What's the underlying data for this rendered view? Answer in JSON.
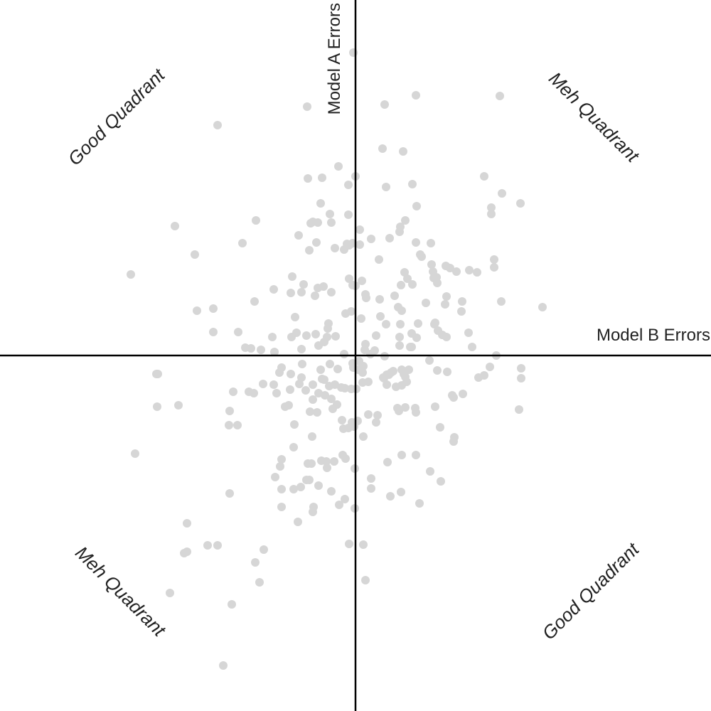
{
  "chart_data": {
    "type": "scatter",
    "title": "",
    "xlabel": "Model B Errors",
    "ylabel": "Model A Errors",
    "xlim": [
      -5,
      5
    ],
    "ylim": [
      -5,
      5
    ],
    "grid": false,
    "point_color": "#d6d6d6",
    "axis_color": "#000000",
    "quadrant_labels": {
      "top_left": "Good Quadrant",
      "top_right": "Meh Quadrant",
      "bottom_left": "Meh Quadrant",
      "bottom_right": "Good Quadrant"
    },
    "points": [
      [
        -0.03,
        4.26
      ],
      [
        -0.68,
        3.5
      ],
      [
        0.85,
        3.66
      ],
      [
        0.41,
        3.53
      ],
      [
        2.03,
        3.65
      ],
      [
        -1.94,
        3.24
      ],
      [
        0.38,
        2.91
      ],
      [
        0.67,
        2.87
      ],
      [
        -0.67,
        2.49
      ],
      [
        -0.47,
        2.5
      ],
      [
        -0.24,
        2.66
      ],
      [
        0.0,
        2.52
      ],
      [
        -0.1,
        2.4
      ],
      [
        1.81,
        2.52
      ],
      [
        2.06,
        2.28
      ],
      [
        0.43,
        2.37
      ],
      [
        0.8,
        2.41
      ],
      [
        -0.49,
        2.14
      ],
      [
        -0.36,
        1.99
      ],
      [
        -0.1,
        1.98
      ],
      [
        0.86,
        2.1
      ],
      [
        1.91,
        2.08
      ],
      [
        1.91,
        1.99
      ],
      [
        2.32,
        2.14
      ],
      [
        -0.34,
        1.87
      ],
      [
        -0.6,
        1.88
      ],
      [
        -0.63,
        1.86
      ],
      [
        0.7,
        1.9
      ],
      [
        -1.4,
        1.9
      ],
      [
        -2.54,
        1.82
      ],
      [
        -0.8,
        1.69
      ],
      [
        -0.53,
        1.87
      ],
      [
        0.06,
        1.77
      ],
      [
        0.63,
        1.81
      ],
      [
        0.62,
        1.74
      ],
      [
        0.48,
        1.65
      ],
      [
        -0.55,
        1.59
      ],
      [
        -0.12,
        1.57
      ],
      [
        0.06,
        1.56
      ],
      [
        -0.04,
        1.58
      ],
      [
        -0.09,
        1.55
      ],
      [
        -1.59,
        1.58
      ],
      [
        0.22,
        1.64
      ],
      [
        0.85,
        1.59
      ],
      [
        1.06,
        1.58
      ],
      [
        -2.26,
        1.42
      ],
      [
        -0.65,
        1.48
      ],
      [
        -0.29,
        1.51
      ],
      [
        -0.16,
        1.49
      ],
      [
        0.91,
        1.42
      ],
      [
        0.93,
        1.39
      ],
      [
        1.95,
        1.35
      ],
      [
        1.07,
        1.28
      ],
      [
        1.09,
        1.18
      ],
      [
        0.33,
        1.35
      ],
      [
        0.69,
        1.17
      ],
      [
        1.27,
        1.26
      ],
      [
        1.95,
        1.24
      ],
      [
        0.73,
        1.08
      ],
      [
        -3.16,
        1.14
      ],
      [
        -0.89,
        1.11
      ],
      [
        -0.73,
        1.0
      ],
      [
        -0.53,
        0.95
      ],
      [
        -0.45,
        0.97
      ],
      [
        -0.09,
        1.08
      ],
      [
        0.09,
        1.05
      ],
      [
        1.1,
        1.09
      ],
      [
        1.42,
        1.18
      ],
      [
        1.6,
        1.2
      ],
      [
        1.33,
        1.23
      ],
      [
        1.14,
        1.1
      ],
      [
        1.15,
        1.02
      ],
      [
        1.71,
        1.17
      ],
      [
        -0.04,
        0.99
      ],
      [
        0.0,
        0.98
      ],
      [
        -0.76,
        0.89
      ],
      [
        0.64,
        0.99
      ],
      [
        0.8,
        1.0
      ],
      [
        -1.15,
        0.93
      ],
      [
        -0.91,
        0.88
      ],
      [
        -0.57,
        0.84
      ],
      [
        -0.34,
        0.89
      ],
      [
        0.14,
        0.86
      ],
      [
        0.55,
        0.84
      ],
      [
        0.15,
        0.81
      ],
      [
        0.34,
        0.79
      ],
      [
        0.99,
        0.74
      ],
      [
        1.28,
        0.83
      ],
      [
        1.26,
        0.72
      ],
      [
        1.5,
        0.76
      ],
      [
        1.49,
        0.62
      ],
      [
        2.05,
        0.76
      ],
      [
        -1.42,
        0.76
      ],
      [
        2.63,
        0.68
      ],
      [
        -2.0,
        0.66
      ],
      [
        -2.23,
        0.63
      ],
      [
        0.6,
        0.68
      ],
      [
        0.65,
        0.63
      ],
      [
        -0.85,
        0.54
      ],
      [
        -0.06,
        0.62
      ],
      [
        -0.14,
        0.59
      ],
      [
        0.08,
        0.52
      ],
      [
        0.35,
        0.55
      ],
      [
        0.43,
        0.44
      ],
      [
        0.63,
        0.44
      ],
      [
        0.88,
        0.45
      ],
      [
        1.11,
        0.44
      ],
      [
        1.12,
        0.46
      ],
      [
        1.16,
        0.35
      ],
      [
        1.22,
        0.29
      ],
      [
        1.28,
        0.26
      ],
      [
        1.59,
        0.32
      ],
      [
        -0.38,
        0.45
      ],
      [
        -0.39,
        0.38
      ],
      [
        -0.56,
        0.3
      ],
      [
        -0.83,
        0.32
      ],
      [
        -0.9,
        0.26
      ],
      [
        -2.0,
        0.33
      ],
      [
        -1.65,
        0.33
      ],
      [
        -1.17,
        0.26
      ],
      [
        -0.69,
        0.28
      ],
      [
        -0.4,
        0.26
      ],
      [
        -0.28,
        0.27
      ],
      [
        0.29,
        0.28
      ],
      [
        0.62,
        0.26
      ],
      [
        0.79,
        0.31
      ],
      [
        0.86,
        0.25
      ],
      [
        -0.52,
        0.14
      ],
      [
        -0.44,
        0.19
      ],
      [
        0.14,
        0.16
      ],
      [
        0.62,
        0.14
      ],
      [
        0.79,
        0.12
      ],
      [
        1.64,
        0.12
      ],
      [
        -1.55,
        0.11
      ],
      [
        -1.47,
        0.1
      ],
      [
        -1.33,
        0.08
      ],
      [
        -1.14,
        0.05
      ],
      [
        -0.76,
        0.09
      ],
      [
        -0.16,
        0.02
      ],
      [
        0.13,
        0.08
      ],
      [
        0.27,
        0.07
      ],
      [
        0.41,
        -0.01
      ],
      [
        0.21,
        0.02
      ],
      [
        0.05,
        -0.08
      ],
      [
        0.77,
        0.12
      ],
      [
        1.04,
        -0.07
      ],
      [
        1.98,
        0.0
      ],
      [
        2.33,
        -0.18
      ],
      [
        2.33,
        -0.32
      ],
      [
        1.81,
        -0.28
      ],
      [
        1.89,
        -0.16
      ],
      [
        1.73,
        -0.31
      ],
      [
        2.3,
        -0.76
      ],
      [
        -0.04,
        -0.11
      ],
      [
        -0.03,
        -0.17
      ],
      [
        0.11,
        -0.15
      ],
      [
        0.04,
        -0.2
      ],
      [
        0.1,
        -0.24
      ],
      [
        0.18,
        -0.37
      ],
      [
        0.4,
        -0.32
      ],
      [
        0.44,
        -0.27
      ],
      [
        0.5,
        -0.24
      ],
      [
        0.53,
        -0.22
      ],
      [
        0.47,
        -0.27
      ],
      [
        0.39,
        -0.31
      ],
      [
        0.65,
        -0.2
      ],
      [
        0.68,
        -0.26
      ],
      [
        0.75,
        -0.2
      ],
      [
        0.7,
        -0.3
      ],
      [
        1.15,
        -0.21
      ],
      [
        1.29,
        -0.23
      ],
      [
        -0.25,
        -0.19
      ],
      [
        -0.36,
        -0.12
      ],
      [
        -0.75,
        -0.12
      ],
      [
        -0.49,
        -0.2
      ],
      [
        -1.04,
        -0.17
      ],
      [
        -1.07,
        -0.24
      ],
      [
        -0.91,
        -0.26
      ],
      [
        -0.76,
        -0.31
      ],
      [
        -0.47,
        -0.33
      ],
      [
        -0.79,
        -0.4
      ],
      [
        -0.6,
        -0.41
      ],
      [
        -0.44,
        -0.34
      ],
      [
        -0.37,
        -0.43
      ],
      [
        -0.29,
        -0.41
      ],
      [
        -0.2,
        -0.45
      ],
      [
        -0.15,
        -0.46
      ],
      [
        -0.06,
        -0.47
      ],
      [
        0.01,
        -0.47
      ],
      [
        0.1,
        -0.38
      ],
      [
        0.44,
        -0.41
      ],
      [
        0.65,
        -0.42
      ],
      [
        0.72,
        -0.37
      ],
      [
        0.57,
        -0.44
      ],
      [
        -1.15,
        -0.41
      ],
      [
        -1.3,
        -0.4
      ],
      [
        -1.11,
        -0.53
      ],
      [
        -0.92,
        -0.48
      ],
      [
        -0.7,
        -0.49
      ],
      [
        -0.52,
        -0.53
      ],
      [
        -0.43,
        -0.56
      ],
      [
        -0.34,
        -0.61
      ],
      [
        -0.26,
        -0.69
      ],
      [
        -1.43,
        -0.53
      ],
      [
        -1.5,
        -0.51
      ],
      [
        -1.72,
        -0.51
      ],
      [
        -2.78,
        -0.26
      ],
      [
        -2.8,
        -0.26
      ],
      [
        -2.79,
        -0.72
      ],
      [
        -2.49,
        -0.7
      ],
      [
        -0.99,
        -0.72
      ],
      [
        -0.94,
        -0.7
      ],
      [
        -0.6,
        -0.62
      ],
      [
        -0.64,
        -0.79
      ],
      [
        -0.54,
        -0.8
      ],
      [
        -1.77,
        -0.78
      ],
      [
        -0.32,
        -0.75
      ],
      [
        0.18,
        -0.83
      ],
      [
        0.31,
        -0.84
      ],
      [
        0.59,
        -0.74
      ],
      [
        0.61,
        -0.78
      ],
      [
        0.7,
        -0.73
      ],
      [
        0.85,
        -0.8
      ],
      [
        0.84,
        -0.74
      ],
      [
        1.12,
        -0.72
      ],
      [
        1.36,
        -0.56
      ],
      [
        1.38,
        -0.59
      ],
      [
        1.51,
        -0.54
      ],
      [
        -1.78,
        -0.98
      ],
      [
        -1.66,
        -0.98
      ],
      [
        -0.86,
        -0.97
      ],
      [
        -0.19,
        -0.91
      ],
      [
        -0.05,
        -0.94
      ],
      [
        0.03,
        -0.92
      ],
      [
        0.29,
        -0.94
      ],
      [
        -0.02,
        -1.0
      ],
      [
        -0.1,
        -1.02
      ],
      [
        -0.17,
        -1.03
      ],
      [
        1.19,
        -1.01
      ],
      [
        1.39,
        -1.15
      ],
      [
        1.38,
        -1.21
      ],
      [
        -0.61,
        -1.14
      ],
      [
        0.11,
        -1.14
      ],
      [
        -0.87,
        -1.29
      ],
      [
        -3.1,
        -1.38
      ],
      [
        -0.18,
        -1.4
      ],
      [
        -0.14,
        -1.45
      ],
      [
        0.65,
        -1.4
      ],
      [
        0.85,
        -1.4
      ],
      [
        -1.04,
        -1.46
      ],
      [
        -1.06,
        -1.56
      ],
      [
        -0.67,
        -1.52
      ],
      [
        -0.62,
        -1.52
      ],
      [
        -0.48,
        -1.48
      ],
      [
        -0.41,
        -1.49
      ],
      [
        -0.3,
        -1.49
      ],
      [
        -0.4,
        -1.58
      ],
      [
        -0.01,
        -1.59
      ],
      [
        0.45,
        -1.5
      ],
      [
        -1.13,
        -1.71
      ],
      [
        -0.65,
        -1.75
      ],
      [
        -0.69,
        -1.75
      ],
      [
        0.22,
        -1.73
      ],
      [
        1.05,
        -1.63
      ],
      [
        1.2,
        -1.77
      ],
      [
        -1.77,
        -1.94
      ],
      [
        -1.04,
        -1.88
      ],
      [
        -0.87,
        -1.88
      ],
      [
        -0.77,
        -1.85
      ],
      [
        -0.52,
        -1.83
      ],
      [
        -0.34,
        -1.91
      ],
      [
        0.22,
        -1.87
      ],
      [
        0.49,
        -1.98
      ],
      [
        0.64,
        -1.92
      ],
      [
        -1.04,
        -2.13
      ],
      [
        -0.59,
        -2.13
      ],
      [
        -0.23,
        -2.1
      ],
      [
        -0.15,
        -2.02
      ],
      [
        0.9,
        -2.08
      ],
      [
        -0.81,
        -2.34
      ],
      [
        -0.6,
        -2.2
      ],
      [
        -0.01,
        -2.15
      ],
      [
        -2.37,
        -2.76
      ],
      [
        -2.61,
        -3.34
      ],
      [
        -2.41,
        -2.78
      ],
      [
        -2.08,
        -2.67
      ],
      [
        -1.94,
        -2.67
      ],
      [
        -1.29,
        -2.73
      ],
      [
        -1.41,
        -2.91
      ],
      [
        -1.35,
        -3.19
      ],
      [
        -0.09,
        -2.65
      ],
      [
        0.11,
        -2.66
      ],
      [
        0.14,
        -3.16
      ],
      [
        -1.74,
        -3.5
      ],
      [
        -1.86,
        -4.36
      ],
      [
        -2.37,
        -2.36
      ]
    ]
  }
}
